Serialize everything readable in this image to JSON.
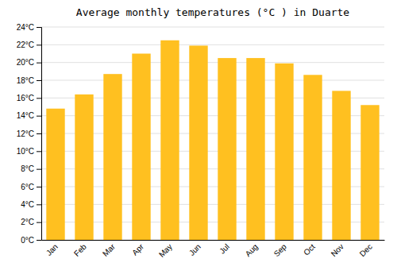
{
  "chart_data": {
    "type": "bar",
    "title": "Average monthly temperatures (°C ) in Duarte",
    "categories": [
      "Jan",
      "Feb",
      "Mar",
      "Apr",
      "May",
      "Jun",
      "Jul",
      "Aug",
      "Sep",
      "Oct",
      "Nov",
      "Dec"
    ],
    "values": [
      14.8,
      16.4,
      18.7,
      21.0,
      22.5,
      21.9,
      20.5,
      20.5,
      19.9,
      18.6,
      16.8,
      15.2
    ],
    "color": "#FFC020",
    "ylim": [
      0,
      24
    ],
    "yticks": [
      {
        "value": 0,
        "label": "0°C"
      },
      {
        "value": 2,
        "label": "2°C"
      },
      {
        "value": 4,
        "label": "4°C"
      },
      {
        "value": 6,
        "label": "6°C"
      },
      {
        "value": 8,
        "label": "8°C"
      },
      {
        "value": 10,
        "label": "10°C"
      },
      {
        "value": 12,
        "label": "12°C"
      },
      {
        "value": 14,
        "label": "14°C"
      },
      {
        "value": 16,
        "label": "16°C"
      },
      {
        "value": 18,
        "label": "18°C"
      },
      {
        "value": 20,
        "label": "20°C"
      },
      {
        "value": 22,
        "label": "22°C"
      },
      {
        "value": 24,
        "label": "24°C"
      }
    ],
    "grid": true
  }
}
